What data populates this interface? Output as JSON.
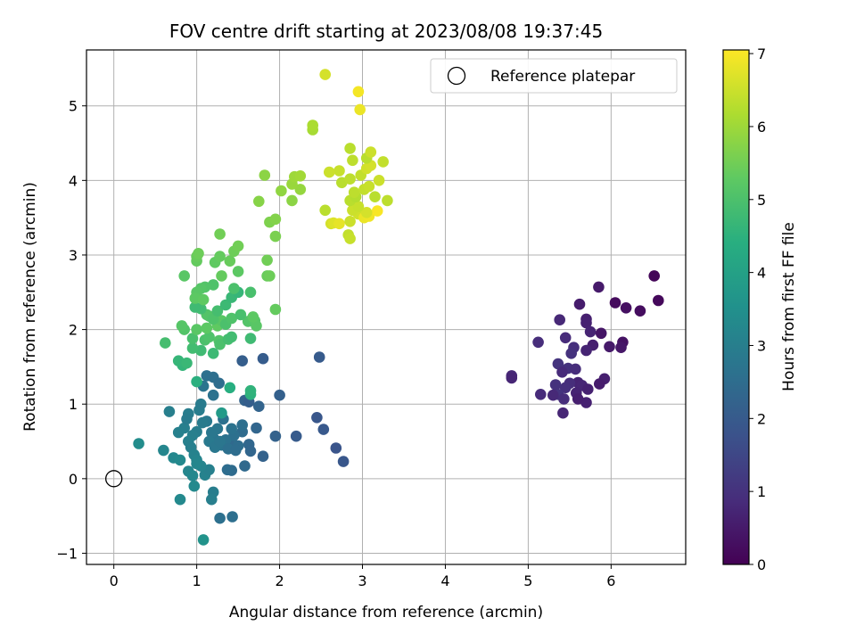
{
  "chart_data": {
    "type": "scatter",
    "title": "FOV centre drift starting at 2023/08/08 19:37:45",
    "xlabel": "Angular distance from reference (arcmin)",
    "ylabel": "Rotation from reference (arcmin)",
    "colorbar_label": "Hours from first FF file",
    "xlim": [
      -0.33,
      6.9
    ],
    "ylim": [
      -1.15,
      5.75
    ],
    "xticks": [
      0,
      1,
      2,
      3,
      4,
      5,
      6
    ],
    "yticks": [
      -1,
      0,
      1,
      2,
      3,
      4,
      5
    ],
    "colorbar_range": [
      0,
      7.05
    ],
    "colorbar_ticks": [
      0,
      1,
      2,
      3,
      4,
      5,
      6,
      7
    ],
    "colormap": "viridis",
    "grid": true,
    "legend": {
      "label": "Reference platepar",
      "position": "top-right",
      "marker": "open-circle"
    },
    "reference_point": {
      "x": 0,
      "y": 0
    },
    "points": [
      {
        "x": 6.52,
        "y": 2.72,
        "c": 0.1
      },
      {
        "x": 6.57,
        "y": 2.39,
        "c": 0.15
      },
      {
        "x": 6.05,
        "y": 2.36,
        "c": 0.2
      },
      {
        "x": 6.18,
        "y": 2.29,
        "c": 0.3
      },
      {
        "x": 6.35,
        "y": 2.25,
        "c": 0.25
      },
      {
        "x": 5.85,
        "y": 2.57,
        "c": 0.5
      },
      {
        "x": 5.62,
        "y": 2.34,
        "c": 0.55
      },
      {
        "x": 5.7,
        "y": 2.14,
        "c": 0.6
      },
      {
        "x": 5.7,
        "y": 2.09,
        "c": 0.65
      },
      {
        "x": 5.75,
        "y": 1.97,
        "c": 0.7
      },
      {
        "x": 5.88,
        "y": 1.95,
        "c": 0.4
      },
      {
        "x": 6.14,
        "y": 1.83,
        "c": 0.35
      },
      {
        "x": 6.12,
        "y": 1.76,
        "c": 0.45
      },
      {
        "x": 5.98,
        "y": 1.77,
        "c": 0.5
      },
      {
        "x": 5.78,
        "y": 1.79,
        "c": 0.6
      },
      {
        "x": 5.7,
        "y": 1.72,
        "c": 0.7
      },
      {
        "x": 5.38,
        "y": 2.13,
        "c": 0.8
      },
      {
        "x": 5.45,
        "y": 1.89,
        "c": 0.85
      },
      {
        "x": 5.12,
        "y": 1.83,
        "c": 0.9
      },
      {
        "x": 5.55,
        "y": 1.76,
        "c": 0.95
      },
      {
        "x": 5.52,
        "y": 1.68,
        "c": 1.0
      },
      {
        "x": 5.36,
        "y": 1.54,
        "c": 1.05
      },
      {
        "x": 5.48,
        "y": 1.48,
        "c": 1.0
      },
      {
        "x": 5.57,
        "y": 1.47,
        "c": 0.9
      },
      {
        "x": 5.41,
        "y": 1.43,
        "c": 0.85
      },
      {
        "x": 4.8,
        "y": 1.38,
        "c": 0.8
      },
      {
        "x": 4.8,
        "y": 1.35,
        "c": 0.75
      },
      {
        "x": 5.92,
        "y": 1.34,
        "c": 0.6
      },
      {
        "x": 5.86,
        "y": 1.27,
        "c": 0.55
      },
      {
        "x": 5.6,
        "y": 1.29,
        "c": 0.7
      },
      {
        "x": 5.65,
        "y": 1.25,
        "c": 0.75
      },
      {
        "x": 5.72,
        "y": 1.2,
        "c": 0.65
      },
      {
        "x": 5.5,
        "y": 1.28,
        "c": 0.9
      },
      {
        "x": 5.45,
        "y": 1.22,
        "c": 0.95
      },
      {
        "x": 5.33,
        "y": 1.26,
        "c": 1.0
      },
      {
        "x": 5.36,
        "y": 1.13,
        "c": 1.05
      },
      {
        "x": 5.3,
        "y": 1.12,
        "c": 0.8
      },
      {
        "x": 5.15,
        "y": 1.13,
        "c": 0.85
      },
      {
        "x": 5.43,
        "y": 1.07,
        "c": 0.9
      },
      {
        "x": 5.58,
        "y": 1.15,
        "c": 0.7
      },
      {
        "x": 5.7,
        "y": 1.02,
        "c": 0.65
      },
      {
        "x": 5.42,
        "y": 0.88,
        "c": 0.75
      },
      {
        "x": 5.6,
        "y": 1.07,
        "c": 0.6
      },
      {
        "x": 2.48,
        "y": 1.63,
        "c": 2.0
      },
      {
        "x": 1.8,
        "y": 1.61,
        "c": 2.05
      },
      {
        "x": 1.55,
        "y": 1.58,
        "c": 2.1
      },
      {
        "x": 2.0,
        "y": 1.12,
        "c": 2.15
      },
      {
        "x": 1.58,
        "y": 1.05,
        "c": 2.2
      },
      {
        "x": 1.63,
        "y": 1.03,
        "c": 2.1
      },
      {
        "x": 1.75,
        "y": 0.97,
        "c": 2.25
      },
      {
        "x": 2.45,
        "y": 0.82,
        "c": 1.9
      },
      {
        "x": 2.53,
        "y": 0.66,
        "c": 1.95
      },
      {
        "x": 2.2,
        "y": 0.57,
        "c": 2.0
      },
      {
        "x": 1.95,
        "y": 0.57,
        "c": 2.2
      },
      {
        "x": 2.68,
        "y": 0.41,
        "c": 1.85
      },
      {
        "x": 2.77,
        "y": 0.23,
        "c": 1.9
      },
      {
        "x": 1.72,
        "y": 0.68,
        "c": 2.3
      },
      {
        "x": 1.63,
        "y": 0.46,
        "c": 2.35
      },
      {
        "x": 1.65,
        "y": 0.37,
        "c": 2.3
      },
      {
        "x": 1.8,
        "y": 0.3,
        "c": 2.2
      },
      {
        "x": 1.58,
        "y": 0.17,
        "c": 2.4
      },
      {
        "x": 1.42,
        "y": 0.11,
        "c": 2.45
      },
      {
        "x": 1.37,
        "y": 0.12,
        "c": 2.5
      },
      {
        "x": 1.43,
        "y": -0.51,
        "c": 2.55
      },
      {
        "x": 1.28,
        "y": -0.53,
        "c": 2.6
      },
      {
        "x": 1.42,
        "y": 0.5,
        "c": 2.4
      },
      {
        "x": 1.5,
        "y": 0.44,
        "c": 2.5
      },
      {
        "x": 1.55,
        "y": 0.63,
        "c": 2.45
      },
      {
        "x": 1.55,
        "y": 0.72,
        "c": 2.55
      },
      {
        "x": 1.45,
        "y": 0.58,
        "c": 2.6
      },
      {
        "x": 1.35,
        "y": 0.52,
        "c": 2.65
      },
      {
        "x": 1.3,
        "y": 0.45,
        "c": 2.7
      },
      {
        "x": 1.38,
        "y": 0.4,
        "c": 2.6
      },
      {
        "x": 1.47,
        "y": 0.38,
        "c": 2.5
      },
      {
        "x": 1.2,
        "y": 0.55,
        "c": 2.7
      },
      {
        "x": 1.25,
        "y": 0.67,
        "c": 2.75
      },
      {
        "x": 1.18,
        "y": 0.62,
        "c": 2.8
      },
      {
        "x": 1.15,
        "y": 0.5,
        "c": 2.85
      },
      {
        "x": 1.22,
        "y": 0.42,
        "c": 2.8
      },
      {
        "x": 1.12,
        "y": 0.77,
        "c": 2.85
      },
      {
        "x": 1.07,
        "y": 0.75,
        "c": 2.9
      },
      {
        "x": 1.03,
        "y": 0.92,
        "c": 2.95
      },
      {
        "x": 1.05,
        "y": 1.0,
        "c": 2.9
      },
      {
        "x": 1.2,
        "y": 1.12,
        "c": 2.65
      },
      {
        "x": 1.08,
        "y": 1.24,
        "c": 2.7
      },
      {
        "x": 1.12,
        "y": 1.38,
        "c": 2.6
      },
      {
        "x": 1.2,
        "y": 1.36,
        "c": 2.55
      },
      {
        "x": 1.27,
        "y": 1.28,
        "c": 2.5
      },
      {
        "x": 1.32,
        "y": 0.8,
        "c": 2.6
      },
      {
        "x": 1.42,
        "y": 0.67,
        "c": 2.65
      },
      {
        "x": 1.0,
        "y": 0.63,
        "c": 2.95
      },
      {
        "x": 0.95,
        "y": 0.58,
        "c": 3.0
      },
      {
        "x": 0.9,
        "y": 0.5,
        "c": 3.05
      },
      {
        "x": 0.93,
        "y": 0.42,
        "c": 3.0
      },
      {
        "x": 0.97,
        "y": 0.32,
        "c": 3.1
      },
      {
        "x": 1.0,
        "y": 0.25,
        "c": 3.15
      },
      {
        "x": 0.85,
        "y": 0.68,
        "c": 3.0
      },
      {
        "x": 0.78,
        "y": 0.62,
        "c": 3.05
      },
      {
        "x": 0.9,
        "y": 0.87,
        "c": 2.95
      },
      {
        "x": 0.88,
        "y": 0.8,
        "c": 2.9
      },
      {
        "x": 0.67,
        "y": 0.9,
        "c": 3.0
      },
      {
        "x": 0.6,
        "y": 0.38,
        "c": 3.2
      },
      {
        "x": 0.72,
        "y": 0.28,
        "c": 3.25
      },
      {
        "x": 0.8,
        "y": 0.25,
        "c": 3.3
      },
      {
        "x": 0.3,
        "y": 0.47,
        "c": 3.4
      },
      {
        "x": 0.9,
        "y": 0.1,
        "c": 3.2
      },
      {
        "x": 0.95,
        "y": 0.04,
        "c": 3.25
      },
      {
        "x": 0.97,
        "y": -0.1,
        "c": 3.3
      },
      {
        "x": 1.1,
        "y": 0.05,
        "c": 3.1
      },
      {
        "x": 1.15,
        "y": 0.12,
        "c": 3.05
      },
      {
        "x": 1.2,
        "y": -0.18,
        "c": 2.95
      },
      {
        "x": 1.18,
        "y": -0.28,
        "c": 3.0
      },
      {
        "x": 0.8,
        "y": -0.28,
        "c": 3.3
      },
      {
        "x": 1.08,
        "y": -0.82,
        "c": 3.6
      },
      {
        "x": 1.05,
        "y": 0.17,
        "c": 3.15
      },
      {
        "x": 1.0,
        "y": 0.2,
        "c": 3.2
      },
      {
        "x": 1.28,
        "y": 0.5,
        "c": 2.75
      },
      {
        "x": 1.3,
        "y": 0.88,
        "c": 3.8
      },
      {
        "x": 1.65,
        "y": 1.13,
        "c": 4.5
      },
      {
        "x": 1.65,
        "y": 1.18,
        "c": 4.55
      },
      {
        "x": 1.4,
        "y": 1.22,
        "c": 4.4
      },
      {
        "x": 1.0,
        "y": 1.3,
        "c": 4.45
      },
      {
        "x": 0.83,
        "y": 1.52,
        "c": 4.6
      },
      {
        "x": 0.78,
        "y": 1.58,
        "c": 4.65
      },
      {
        "x": 0.88,
        "y": 1.55,
        "c": 4.7
      },
      {
        "x": 1.2,
        "y": 1.68,
        "c": 4.75
      },
      {
        "x": 1.05,
        "y": 1.72,
        "c": 4.8
      },
      {
        "x": 0.95,
        "y": 1.75,
        "c": 4.85
      },
      {
        "x": 0.62,
        "y": 1.82,
        "c": 4.9
      },
      {
        "x": 0.95,
        "y": 1.88,
        "c": 4.95
      },
      {
        "x": 1.1,
        "y": 1.86,
        "c": 5.0
      },
      {
        "x": 1.15,
        "y": 1.9,
        "c": 5.05
      },
      {
        "x": 1.27,
        "y": 1.85,
        "c": 5.1
      },
      {
        "x": 1.28,
        "y": 1.8,
        "c": 5.0
      },
      {
        "x": 1.38,
        "y": 1.87,
        "c": 4.9
      },
      {
        "x": 1.42,
        "y": 1.9,
        "c": 4.85
      },
      {
        "x": 1.65,
        "y": 1.88,
        "c": 4.8
      },
      {
        "x": 0.85,
        "y": 2.0,
        "c": 5.1
      },
      {
        "x": 0.82,
        "y": 2.05,
        "c": 5.15
      },
      {
        "x": 1.0,
        "y": 2.0,
        "c": 5.2
      },
      {
        "x": 1.12,
        "y": 2.02,
        "c": 5.25
      },
      {
        "x": 1.25,
        "y": 2.05,
        "c": 5.3
      },
      {
        "x": 1.3,
        "y": 2.12,
        "c": 5.2
      },
      {
        "x": 1.15,
        "y": 2.18,
        "c": 5.15
      },
      {
        "x": 1.12,
        "y": 2.2,
        "c": 5.1
      },
      {
        "x": 1.2,
        "y": 2.14,
        "c": 5.05
      },
      {
        "x": 1.35,
        "y": 2.07,
        "c": 5.0
      },
      {
        "x": 1.42,
        "y": 2.15,
        "c": 5.05
      },
      {
        "x": 1.62,
        "y": 2.11,
        "c": 5.1
      },
      {
        "x": 1.7,
        "y": 2.12,
        "c": 5.15
      },
      {
        "x": 1.72,
        "y": 2.05,
        "c": 5.2
      },
      {
        "x": 1.68,
        "y": 2.17,
        "c": 5.25
      },
      {
        "x": 1.53,
        "y": 2.2,
        "c": 4.95
      },
      {
        "x": 1.25,
        "y": 2.25,
        "c": 4.9
      },
      {
        "x": 1.05,
        "y": 2.28,
        "c": 4.85
      },
      {
        "x": 0.98,
        "y": 2.3,
        "c": 4.8
      },
      {
        "x": 1.35,
        "y": 2.33,
        "c": 4.75
      },
      {
        "x": 1.42,
        "y": 2.43,
        "c": 4.7
      },
      {
        "x": 1.5,
        "y": 2.5,
        "c": 4.65
      },
      {
        "x": 1.95,
        "y": 2.27,
        "c": 5.35
      },
      {
        "x": 1.65,
        "y": 2.5,
        "c": 4.95
      },
      {
        "x": 1.45,
        "y": 2.55,
        "c": 5.0
      },
      {
        "x": 1.2,
        "y": 2.6,
        "c": 5.05
      },
      {
        "x": 1.1,
        "y": 2.57,
        "c": 5.1
      },
      {
        "x": 1.05,
        "y": 2.55,
        "c": 5.15
      },
      {
        "x": 1.0,
        "y": 2.5,
        "c": 5.2
      },
      {
        "x": 0.98,
        "y": 2.42,
        "c": 5.25
      },
      {
        "x": 1.08,
        "y": 2.4,
        "c": 5.3
      },
      {
        "x": 1.3,
        "y": 2.72,
        "c": 5.35
      },
      {
        "x": 1.85,
        "y": 2.72,
        "c": 5.4
      },
      {
        "x": 1.88,
        "y": 2.72,
        "c": 5.45
      },
      {
        "x": 0.85,
        "y": 2.72,
        "c": 5.2
      },
      {
        "x": 1.22,
        "y": 2.9,
        "c": 5.3
      },
      {
        "x": 1.28,
        "y": 2.98,
        "c": 5.35
      },
      {
        "x": 1.4,
        "y": 2.92,
        "c": 5.4
      },
      {
        "x": 1.45,
        "y": 3.05,
        "c": 5.45
      },
      {
        "x": 1.5,
        "y": 3.12,
        "c": 5.5
      },
      {
        "x": 1.5,
        "y": 2.78,
        "c": 5.25
      },
      {
        "x": 1.85,
        "y": 2.93,
        "c": 5.5
      },
      {
        "x": 1.0,
        "y": 2.92,
        "c": 5.35
      },
      {
        "x": 1.0,
        "y": 2.98,
        "c": 5.4
      },
      {
        "x": 1.02,
        "y": 3.02,
        "c": 5.45
      },
      {
        "x": 1.28,
        "y": 3.28,
        "c": 5.5
      },
      {
        "x": 1.95,
        "y": 3.25,
        "c": 5.6
      },
      {
        "x": 1.88,
        "y": 3.44,
        "c": 5.65
      },
      {
        "x": 1.95,
        "y": 3.48,
        "c": 5.7
      },
      {
        "x": 1.75,
        "y": 3.72,
        "c": 5.75
      },
      {
        "x": 2.15,
        "y": 3.73,
        "c": 5.8
      },
      {
        "x": 2.02,
        "y": 3.86,
        "c": 5.85
      },
      {
        "x": 2.25,
        "y": 3.88,
        "c": 5.9
      },
      {
        "x": 2.15,
        "y": 3.95,
        "c": 5.95
      },
      {
        "x": 2.18,
        "y": 4.05,
        "c": 6.0
      },
      {
        "x": 2.25,
        "y": 4.06,
        "c": 6.05
      },
      {
        "x": 1.82,
        "y": 4.07,
        "c": 5.8
      },
      {
        "x": 2.4,
        "y": 4.68,
        "c": 6.1
      },
      {
        "x": 2.4,
        "y": 4.74,
        "c": 6.15
      },
      {
        "x": 2.55,
        "y": 3.6,
        "c": 6.3
      },
      {
        "x": 2.62,
        "y": 3.42,
        "c": 6.6
      },
      {
        "x": 2.65,
        "y": 3.43,
        "c": 6.7
      },
      {
        "x": 2.72,
        "y": 3.42,
        "c": 6.8
      },
      {
        "x": 2.85,
        "y": 3.45,
        "c": 6.5
      },
      {
        "x": 2.83,
        "y": 3.27,
        "c": 6.4
      },
      {
        "x": 2.85,
        "y": 3.22,
        "c": 6.45
      },
      {
        "x": 2.95,
        "y": 3.55,
        "c": 6.55
      },
      {
        "x": 3.02,
        "y": 3.5,
        "c": 6.85
      },
      {
        "x": 3.08,
        "y": 3.52,
        "c": 6.9
      },
      {
        "x": 3.18,
        "y": 3.59,
        "c": 7.0
      },
      {
        "x": 3.05,
        "y": 3.57,
        "c": 6.6
      },
      {
        "x": 2.88,
        "y": 3.6,
        "c": 6.5
      },
      {
        "x": 2.95,
        "y": 3.65,
        "c": 6.45
      },
      {
        "x": 3.3,
        "y": 3.73,
        "c": 6.35
      },
      {
        "x": 2.85,
        "y": 3.73,
        "c": 6.3
      },
      {
        "x": 2.92,
        "y": 3.78,
        "c": 6.25
      },
      {
        "x": 3.15,
        "y": 3.78,
        "c": 6.3
      },
      {
        "x": 2.9,
        "y": 3.84,
        "c": 6.35
      },
      {
        "x": 3.02,
        "y": 3.88,
        "c": 6.4
      },
      {
        "x": 3.08,
        "y": 3.92,
        "c": 6.45
      },
      {
        "x": 3.2,
        "y": 4.0,
        "c": 6.5
      },
      {
        "x": 2.75,
        "y": 3.97,
        "c": 6.3
      },
      {
        "x": 2.85,
        "y": 4.02,
        "c": 6.35
      },
      {
        "x": 2.98,
        "y": 4.07,
        "c": 6.4
      },
      {
        "x": 2.72,
        "y": 4.13,
        "c": 6.45
      },
      {
        "x": 2.6,
        "y": 4.11,
        "c": 6.5
      },
      {
        "x": 3.05,
        "y": 4.16,
        "c": 6.55
      },
      {
        "x": 3.1,
        "y": 4.2,
        "c": 6.6
      },
      {
        "x": 3.25,
        "y": 4.25,
        "c": 6.4
      },
      {
        "x": 2.88,
        "y": 4.27,
        "c": 6.35
      },
      {
        "x": 3.05,
        "y": 4.3,
        "c": 6.3
      },
      {
        "x": 3.1,
        "y": 4.38,
        "c": 6.5
      },
      {
        "x": 2.85,
        "y": 4.43,
        "c": 6.3
      },
      {
        "x": 2.97,
        "y": 4.95,
        "c": 6.85
      },
      {
        "x": 2.95,
        "y": 5.19,
        "c": 6.95
      },
      {
        "x": 2.55,
        "y": 5.42,
        "c": 6.6
      }
    ]
  }
}
